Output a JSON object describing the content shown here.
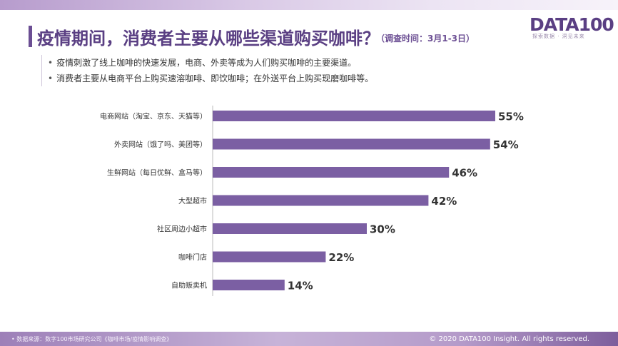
{
  "header": {
    "title": "疫情期间，消费者主要从哪些渠道购买咖啡？",
    "survey_time": "（调查时间：3月1-3日）"
  },
  "logo": {
    "text": "DATA100",
    "tagline": "探索数据 · 洞见未来"
  },
  "bullets": [
    "疫情刺激了线上咖啡的快速发展，电商、外卖等成为人们购买咖啡的主要渠道。",
    "消费者主要从电商平台上购买速溶咖啡、即饮咖啡；在外送平台上购买现磨咖啡等。"
  ],
  "chart_data": {
    "type": "bar",
    "orientation": "horizontal",
    "categories": [
      "电商网站（淘宝、京东、天猫等）",
      "外卖网站（饿了吗、美团等）",
      "生鲜网站（每日优鲜、盒马等）",
      "大型超市",
      "社区周边小超市",
      "咖啡门店",
      "自助贩卖机"
    ],
    "values": [
      55,
      54,
      46,
      42,
      30,
      22,
      14
    ],
    "value_labels": [
      "55%",
      "54%",
      "46%",
      "42%",
      "30%",
      "22%",
      "14%"
    ],
    "unit": "%",
    "xlim": [
      0,
      100
    ],
    "grid": false,
    "legend": "none",
    "bar_color": "#7b5fa3"
  },
  "footer": {
    "source": "• 数据来源：数字100市场研究公司《咖啡市场/疫情影响调查》",
    "copyright": "© 2020 DATA100 Insight. All rights reserved."
  },
  "colors": {
    "accent": "#5a3f83",
    "bar": "#7b5fa3",
    "band": "#b49ac9"
  }
}
